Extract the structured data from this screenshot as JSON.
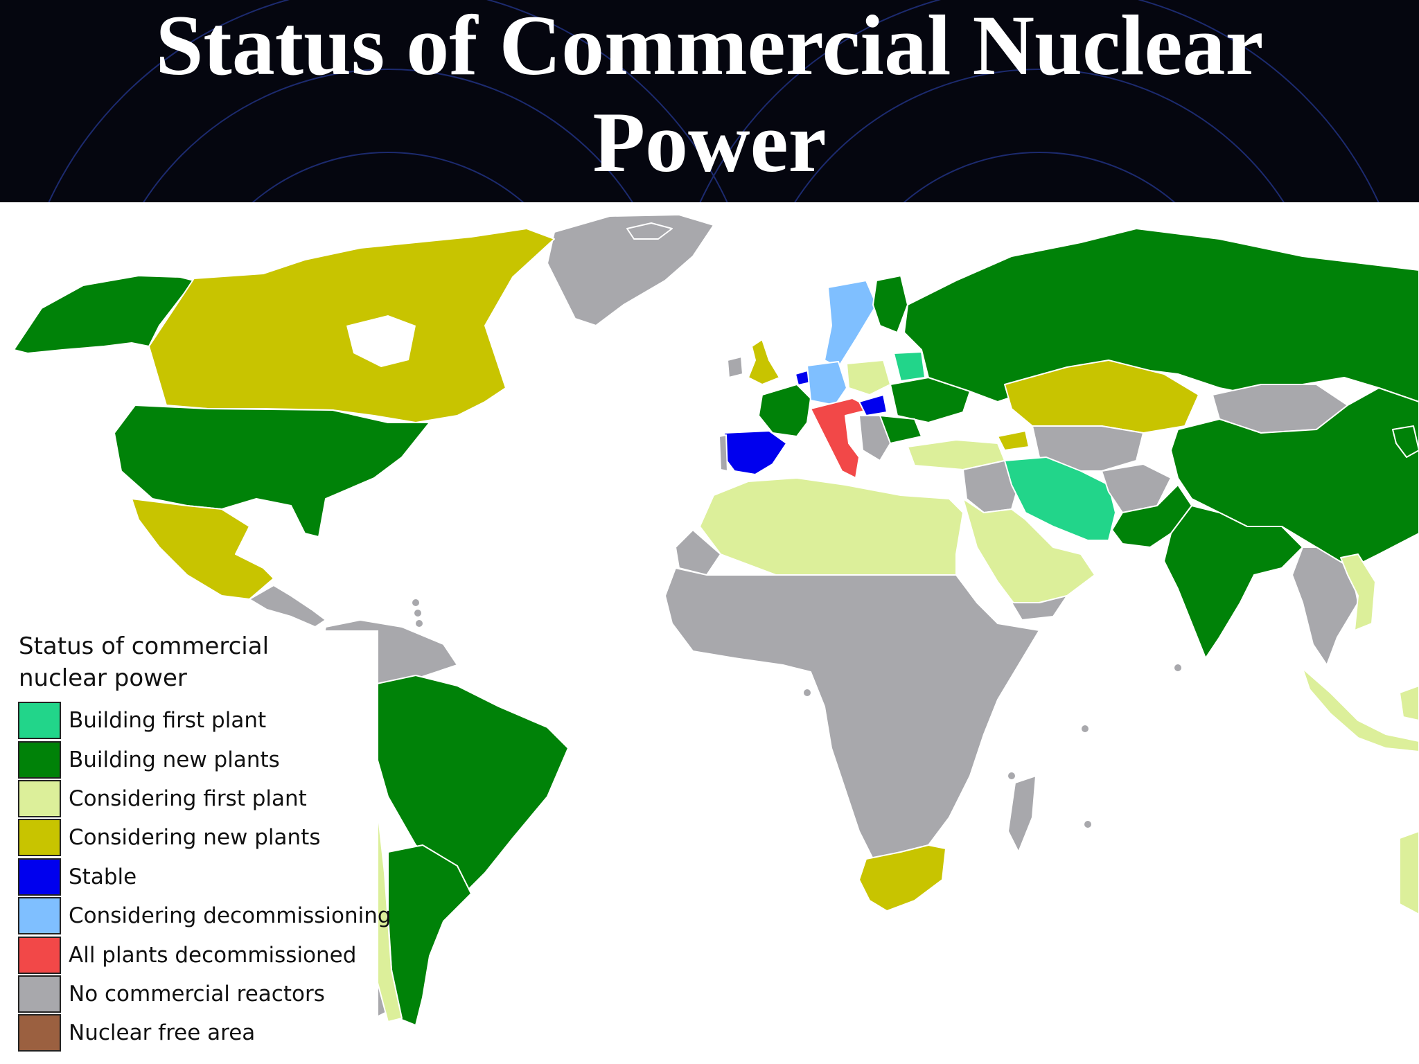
{
  "title": {
    "line1": "Status of Commercial Nuclear",
    "line2": "Power"
  },
  "map": {
    "background": "#ffffff",
    "border_color": "#ffffff"
  },
  "legend": {
    "title_line1": "Status of commercial",
    "title_line2": "nuclear power",
    "items": [
      {
        "label": "Building first plant",
        "color": "#22d58a"
      },
      {
        "label": "Building new plants",
        "color": "#008208"
      },
      {
        "label": "Considering first plant",
        "color": "#dcef9a"
      },
      {
        "label": "Considering new plants",
        "color": "#c8c400"
      },
      {
        "label": "Stable",
        "color": "#0000ee"
      },
      {
        "label": "Considering decommissioning",
        "color": "#7fbfff"
      },
      {
        "label": "All plants decommissioned",
        "color": "#f24848"
      },
      {
        "label": "No commercial reactors",
        "color": "#a8a8ac"
      },
      {
        "label": "Nuclear free area",
        "color": "#9b6040"
      }
    ]
  }
}
